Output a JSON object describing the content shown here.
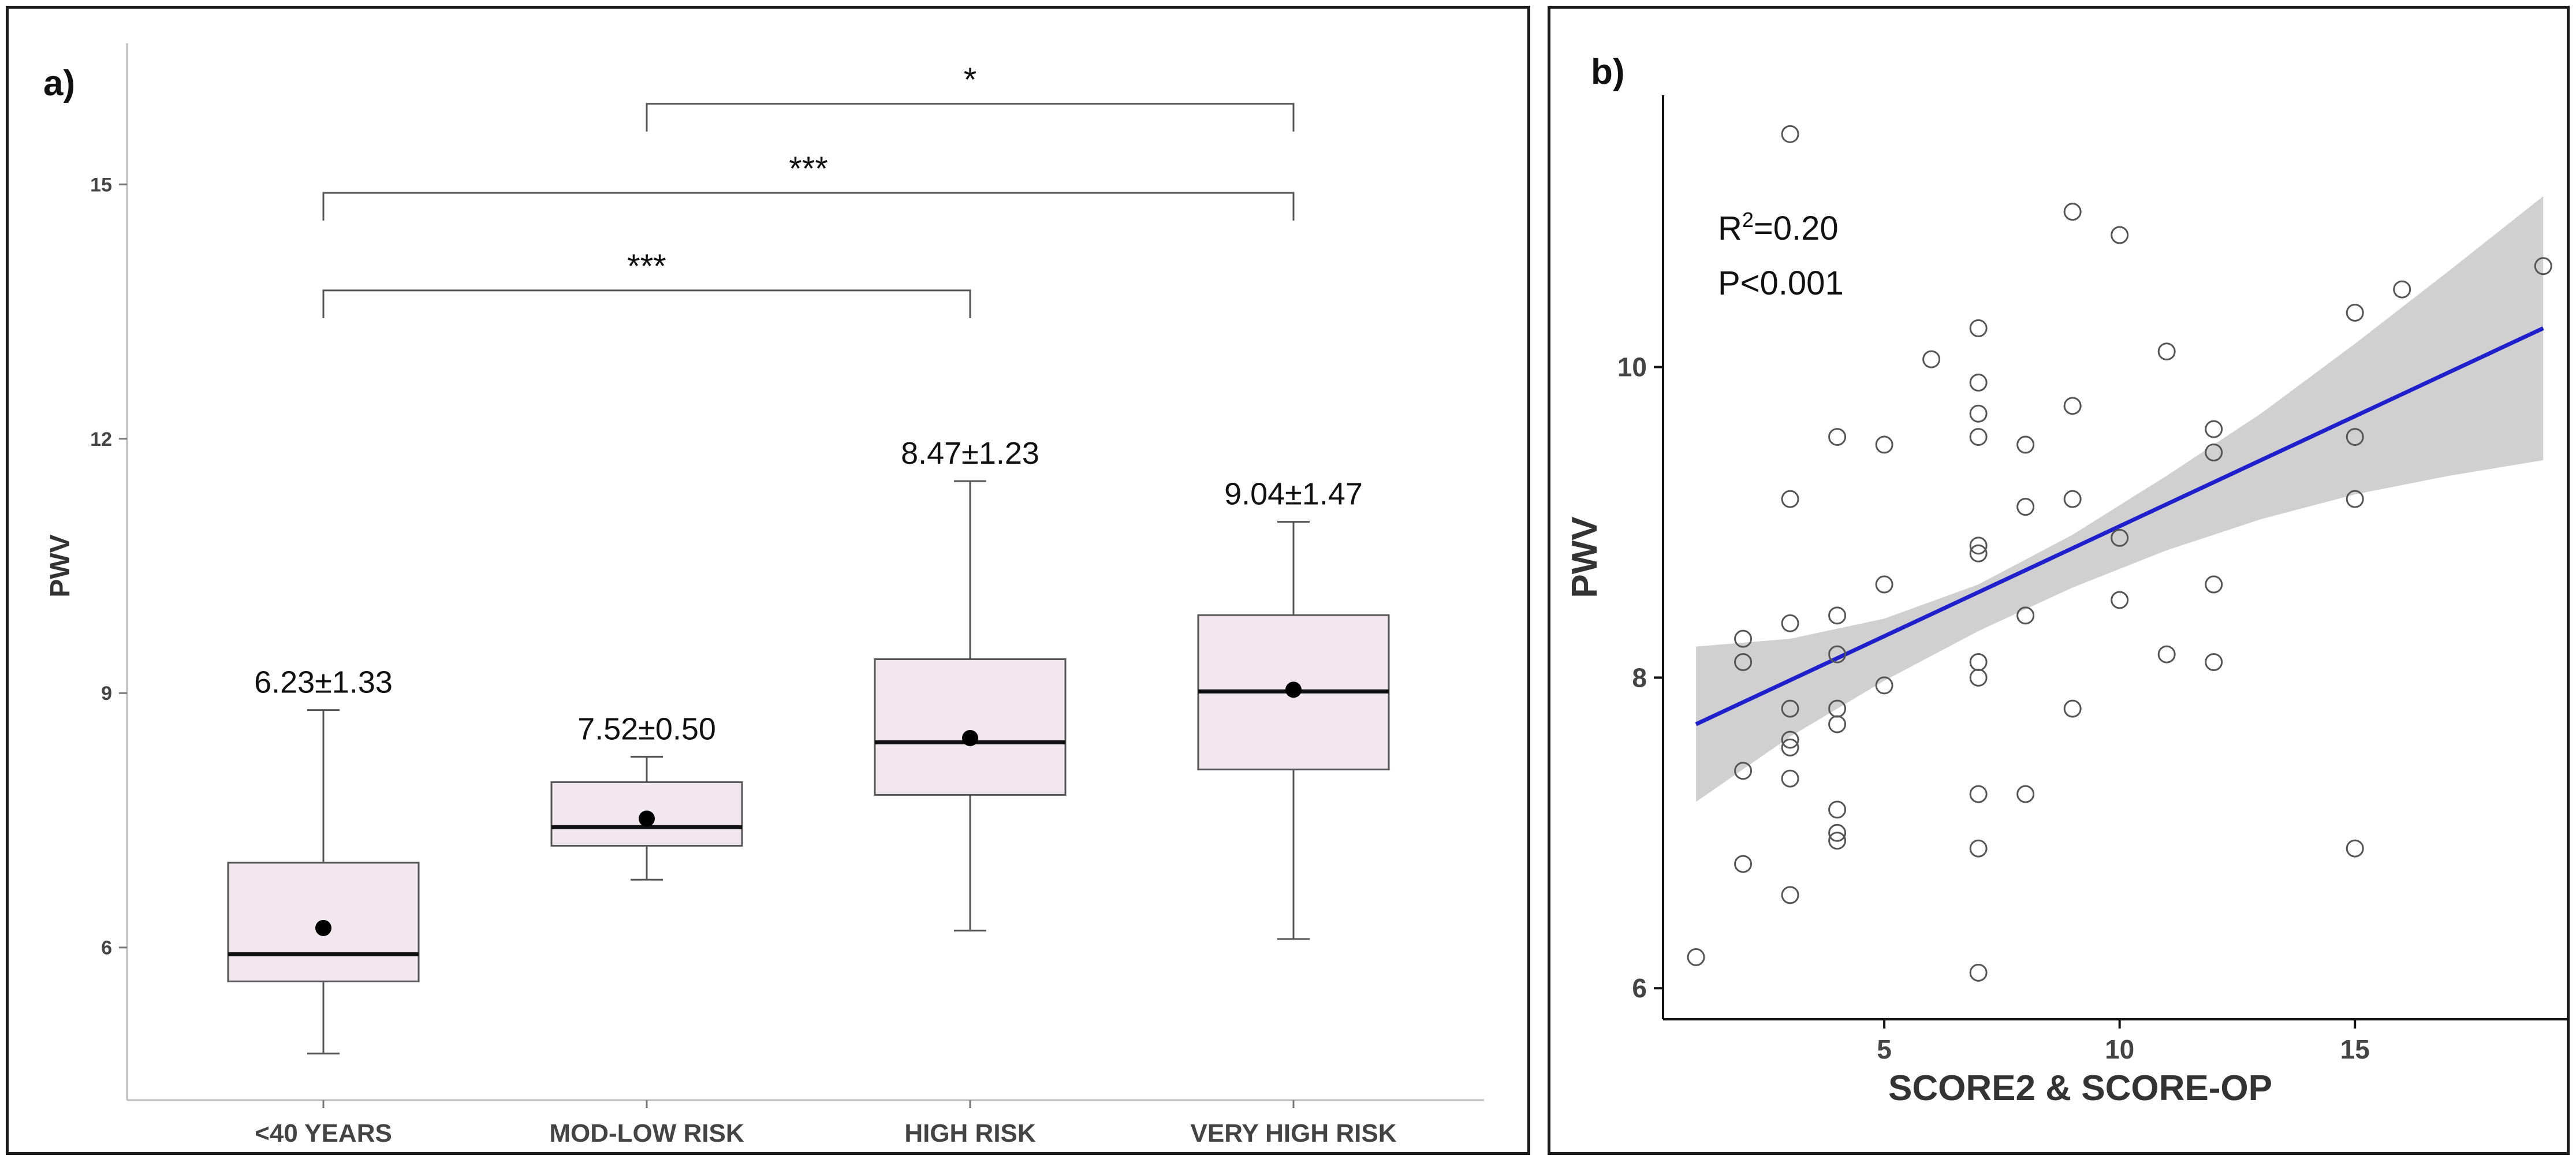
{
  "chart_data": [
    {
      "panel": "a)",
      "type": "box",
      "ylabel": "PWV",
      "xlabel": "",
      "ylim": [
        4.2,
        16.8
      ],
      "yticks": [
        6,
        9,
        12,
        15
      ],
      "categories": [
        "<40 YEARS",
        "MOD-LOW RISK",
        "HIGH RISK",
        "VERY HIGH RISK"
      ],
      "boxes": [
        {
          "min": 4.75,
          "q1": 5.6,
          "median": 5.92,
          "q3": 7.0,
          "max": 8.8,
          "mean": 6.23,
          "label": "6.23±1.33"
        },
        {
          "min": 6.8,
          "q1": 7.2,
          "median": 7.42,
          "q3": 7.95,
          "max": 8.25,
          "mean": 7.52,
          "label": "7.52±0.50"
        },
        {
          "min": 6.2,
          "q1": 7.8,
          "median": 8.42,
          "q3": 9.4,
          "max": 11.5,
          "mean": 8.47,
          "label": "8.47±1.23"
        },
        {
          "min": 6.1,
          "q1": 8.1,
          "median": 9.02,
          "q3": 9.92,
          "max": 11.02,
          "mean": 9.04,
          "label": "9.04±1.47"
        }
      ],
      "comparisons": [
        {
          "from": 0,
          "to": 2,
          "y": 13.75,
          "label": "***"
        },
        {
          "from": 0,
          "to": 3,
          "y": 14.9,
          "label": "***"
        },
        {
          "from": 1,
          "to": 3,
          "y": 15.95,
          "label": "*"
        }
      ],
      "colors": {
        "box_fill": "#f2e6ef",
        "box_stroke": "#555555",
        "whisker": "#555555"
      }
    },
    {
      "panel": "b)",
      "type": "scatter",
      "xlabel": "SCORE2 & SCORE-OP",
      "ylabel": "PWV",
      "xlim": [
        0.3,
        19.5
      ],
      "ylim": [
        5.8,
        11.75
      ],
      "xticks": [
        5,
        10,
        15
      ],
      "yticks": [
        6,
        8,
        10
      ],
      "annotation": {
        "r2": "R²=0.20",
        "p": "P<0.001"
      },
      "regression": {
        "x": [
          1,
          19
        ],
        "y": [
          7.7,
          10.25
        ]
      },
      "confidence_band": {
        "x": [
          1,
          3,
          5,
          7,
          9,
          11,
          13,
          15,
          17,
          19
        ],
        "lower": [
          7.2,
          7.62,
          7.98,
          8.3,
          8.58,
          8.82,
          9.02,
          9.18,
          9.3,
          9.4
        ],
        "upper": [
          8.2,
          8.25,
          8.38,
          8.6,
          8.92,
          9.3,
          9.7,
          10.15,
          10.62,
          11.1
        ]
      },
      "points": [
        [
          1,
          6.2
        ],
        [
          2,
          8.25
        ],
        [
          2,
          8.1
        ],
        [
          2,
          7.4
        ],
        [
          2,
          6.8
        ],
        [
          3,
          11.5
        ],
        [
          3,
          9.15
        ],
        [
          3,
          8.35
        ],
        [
          3,
          7.8
        ],
        [
          3,
          7.6
        ],
        [
          3,
          7.55
        ],
        [
          3,
          7.35
        ],
        [
          3,
          6.6
        ],
        [
          4,
          9.55
        ],
        [
          4,
          8.4
        ],
        [
          4,
          8.15
        ],
        [
          4,
          7.8
        ],
        [
          4,
          7.7
        ],
        [
          4,
          7.15
        ],
        [
          4,
          7.0
        ],
        [
          4,
          6.95
        ],
        [
          5,
          9.5
        ],
        [
          5,
          8.6
        ],
        [
          5,
          7.95
        ],
        [
          6,
          10.05
        ],
        [
          7,
          10.25
        ],
        [
          7,
          9.9
        ],
        [
          7,
          9.7
        ],
        [
          7,
          9.55
        ],
        [
          7,
          8.85
        ],
        [
          7,
          8.8
        ],
        [
          7,
          8.1
        ],
        [
          7,
          8.0
        ],
        [
          7,
          7.25
        ],
        [
          7,
          6.9
        ],
        [
          7,
          6.1
        ],
        [
          8,
          9.5
        ],
        [
          8,
          9.1
        ],
        [
          8,
          8.4
        ],
        [
          8,
          7.25
        ],
        [
          9,
          11.0
        ],
        [
          9,
          9.75
        ],
        [
          9,
          9.15
        ],
        [
          9,
          7.8
        ],
        [
          10,
          10.85
        ],
        [
          10,
          8.9
        ],
        [
          10,
          8.5
        ],
        [
          11,
          10.1
        ],
        [
          11,
          8.15
        ],
        [
          12,
          9.6
        ],
        [
          12,
          9.45
        ],
        [
          12,
          8.6
        ],
        [
          12,
          8.1
        ],
        [
          15,
          10.35
        ],
        [
          15,
          9.55
        ],
        [
          15,
          9.15
        ],
        [
          15,
          6.9
        ],
        [
          16,
          10.5
        ],
        [
          19,
          10.65
        ]
      ],
      "colors": {
        "line": "#1f1fcc",
        "band": "#d0d0d0",
        "point": "#555555"
      }
    }
  ]
}
